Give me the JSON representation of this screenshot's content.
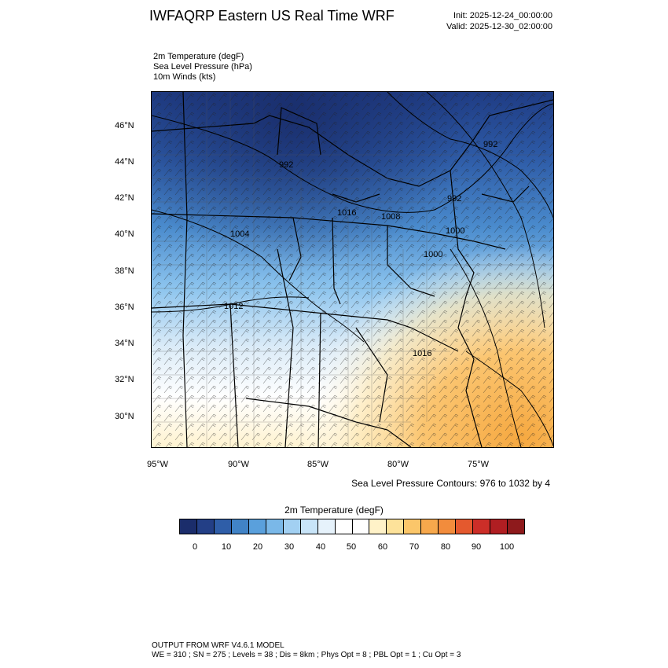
{
  "header": {
    "title": "IWFAQRP Eastern US Real Time WRF",
    "init": "Init: 2025-12-24_00:00:00",
    "valid": "Valid: 2025-12-30_02:00:00"
  },
  "fields": [
    "2m Temperature   (degF)",
    "Sea Level Pressure   (hPa)",
    "10m Winds   (kts)"
  ],
  "map": {
    "lat_labels": [
      "46°N",
      "44°N",
      "42°N",
      "40°N",
      "38°N",
      "36°N",
      "34°N",
      "32°N",
      "30°N"
    ],
    "lon_labels": [
      "95°W",
      "90°W",
      "85°W",
      "80°W",
      "75°W"
    ],
    "isobar_labels": [
      "992",
      "1004",
      "1016",
      "1008",
      "992",
      "1000",
      "1000",
      "992",
      "1012",
      "1016"
    ],
    "colors": {
      "cold": "#1f3c84",
      "mid": "#5aa0dc",
      "neutral": "#ffffff",
      "warm": "#f7b24e",
      "outline": "#000000"
    }
  },
  "slp_note": "Sea Level Pressure Contours: 976 to 1032 by 4",
  "colorbar": {
    "title": "2m Temperature  (degF)",
    "colors": [
      "#1b2d6b",
      "#233f86",
      "#2f5ea8",
      "#4183c6",
      "#5aa0dc",
      "#7ab8e8",
      "#a2d0f2",
      "#c8e4f8",
      "#e6f2fb",
      "#ffffff",
      "#ffffff",
      "#fff2c8",
      "#fde29a",
      "#fbc66a",
      "#f7a84c",
      "#f28c3c",
      "#e4592e",
      "#cc2e28",
      "#b01e22",
      "#8e1a1c"
    ],
    "labels": [
      "0",
      "10",
      "20",
      "30",
      "40",
      "50",
      "60",
      "70",
      "80",
      "90",
      "100"
    ]
  },
  "footer": {
    "line1": "OUTPUT FROM WRF V4.6.1 MODEL",
    "line2": "WE = 310 ; SN = 275 ; Levels = 38 ; Dis = 8km ; Phys Opt = 8 ; PBL Opt = 1 ; Cu Opt = 3"
  }
}
